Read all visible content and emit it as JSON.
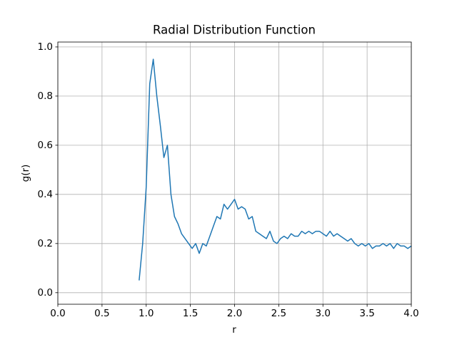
{
  "chart_data": {
    "type": "line",
    "title": "Radial Distribution Function",
    "x_label": "r",
    "y_label": "g(r)",
    "x": [
      0.92,
      0.96,
      1.0,
      1.04,
      1.08,
      1.12,
      1.16,
      1.2,
      1.24,
      1.28,
      1.32,
      1.36,
      1.4,
      1.44,
      1.48,
      1.52,
      1.56,
      1.6,
      1.64,
      1.68,
      1.72,
      1.76,
      1.8,
      1.84,
      1.88,
      1.92,
      1.96,
      2.0,
      2.04,
      2.08,
      2.12,
      2.16,
      2.2,
      2.24,
      2.28,
      2.32,
      2.36,
      2.4,
      2.44,
      2.48,
      2.52,
      2.56,
      2.6,
      2.64,
      2.68,
      2.72,
      2.76,
      2.8,
      2.84,
      2.88,
      2.92,
      2.96,
      3.0,
      3.04,
      3.08,
      3.12,
      3.16,
      3.2,
      3.24,
      3.28,
      3.32,
      3.36,
      3.4,
      3.44,
      3.48,
      3.52,
      3.56,
      3.6,
      3.64,
      3.68,
      3.72,
      3.76,
      3.8,
      3.84,
      3.88,
      3.92,
      3.96,
      4.0
    ],
    "series": [
      {
        "color": "#1f77b4",
        "values": [
          0.05,
          0.2,
          0.43,
          0.85,
          0.95,
          0.8,
          0.68,
          0.55,
          0.6,
          0.4,
          0.31,
          0.28,
          0.24,
          0.22,
          0.2,
          0.18,
          0.2,
          0.16,
          0.2,
          0.19,
          0.23,
          0.27,
          0.31,
          0.3,
          0.36,
          0.34,
          0.36,
          0.38,
          0.34,
          0.35,
          0.34,
          0.3,
          0.31,
          0.25,
          0.24,
          0.23,
          0.22,
          0.25,
          0.21,
          0.2,
          0.22,
          0.23,
          0.22,
          0.24,
          0.23,
          0.23,
          0.25,
          0.24,
          0.25,
          0.24,
          0.25,
          0.25,
          0.24,
          0.23,
          0.25,
          0.23,
          0.24,
          0.23,
          0.22,
          0.21,
          0.22,
          0.2,
          0.19,
          0.2,
          0.19,
          0.2,
          0.18,
          0.19,
          0.19,
          0.2,
          0.19,
          0.2,
          0.18,
          0.2,
          0.19,
          0.19,
          0.18,
          0.19
        ]
      }
    ],
    "xlim": [
      0,
      4
    ],
    "ylim": [
      -0.047,
      1.02
    ],
    "xticks": [
      {
        "value": 0,
        "label": "0.0"
      },
      0.5,
      {
        "value": 1,
        "label": "1.0"
      },
      1.5,
      {
        "value": 2,
        "label": "2.0"
      },
      2.5,
      {
        "value": 3,
        "label": "3.0"
      },
      3.5,
      {
        "value": 4,
        "label": "4.0"
      }
    ],
    "yticks": [
      {
        "value": 0,
        "label": "0.0"
      },
      0.2,
      0.4,
      0.6,
      0.8,
      {
        "value": 1,
        "label": "1.0"
      }
    ],
    "grid": true
  }
}
